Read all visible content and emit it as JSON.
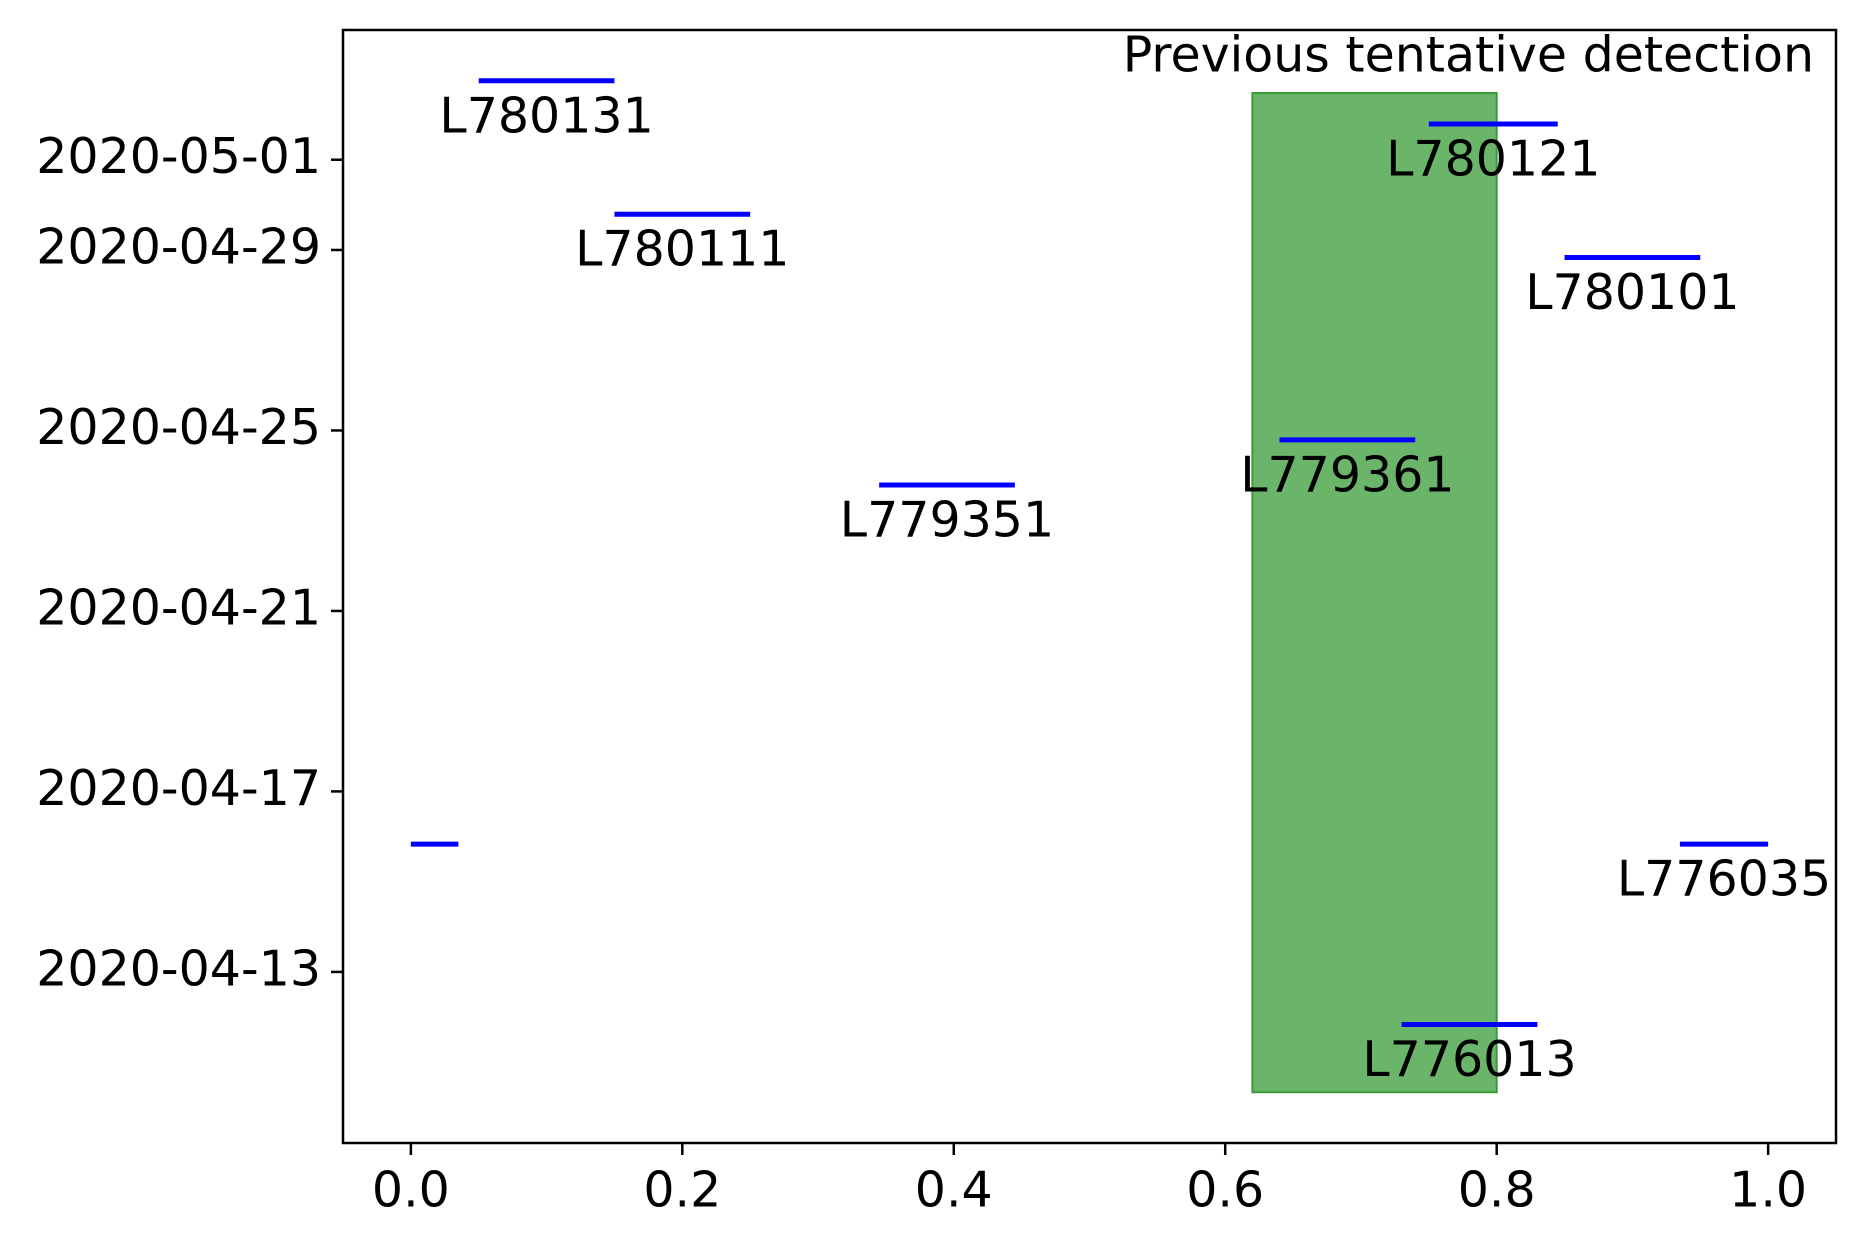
{
  "chart_data": {
    "type": "segments",
    "annotation": "Previous tentative detection",
    "color": "#0000ff",
    "segments": [
      {
        "label": "L780131",
        "x": [
          0.05,
          0.15
        ],
        "y": "2020-05-02T18:00"
      },
      {
        "label": "L780121",
        "x": [
          0.75,
          0.845
        ],
        "y": "2020-05-01T19:00"
      },
      {
        "label": "L780111",
        "x": [
          0.15,
          0.25
        ],
        "y": "2020-04-29T19:00"
      },
      {
        "label": "L780101",
        "x": [
          0.85,
          0.95
        ],
        "y": "2020-04-28T20:00"
      },
      {
        "label": "L779361",
        "x": [
          0.64,
          0.74
        ],
        "y": "2020-04-24T19:00"
      },
      {
        "label": "L779351",
        "x": [
          0.345,
          0.445
        ],
        "y": "2020-04-23T19:00"
      },
      {
        "label": null,
        "x": [
          0,
          0.035
        ],
        "y": "2020-04-15T20:00"
      },
      {
        "label": "L776035",
        "x": [
          0.935,
          1
        ],
        "y": "2020-04-15T20:00"
      },
      {
        "label": "L776013",
        "x": [
          0.73,
          0.83
        ],
        "y": "2020-04-11T20:00"
      }
    ],
    "span": {
      "x": [
        0.62,
        0.8
      ],
      "y": [
        "2020-04-10T08:00",
        "2020-05-02T11:30"
      ],
      "color": "#6bb56b",
      "edge": "#3a9a3a"
    },
    "xlim": [
      -0.05,
      1.05
    ],
    "xticks": [
      {
        "value": 0,
        "label": "0.0"
      },
      0.2,
      0.4,
      0.6,
      0.8,
      {
        "value": 1,
        "label": "1.0"
      }
    ],
    "ylim": [
      "2020-04-09T05:00",
      "2020-05-03T21:00"
    ],
    "yticks": [
      "2020-04-13",
      "2020-04-17",
      "2020-04-21",
      "2020-04-25",
      "2020-04-29",
      "2020-05-01"
    ]
  }
}
